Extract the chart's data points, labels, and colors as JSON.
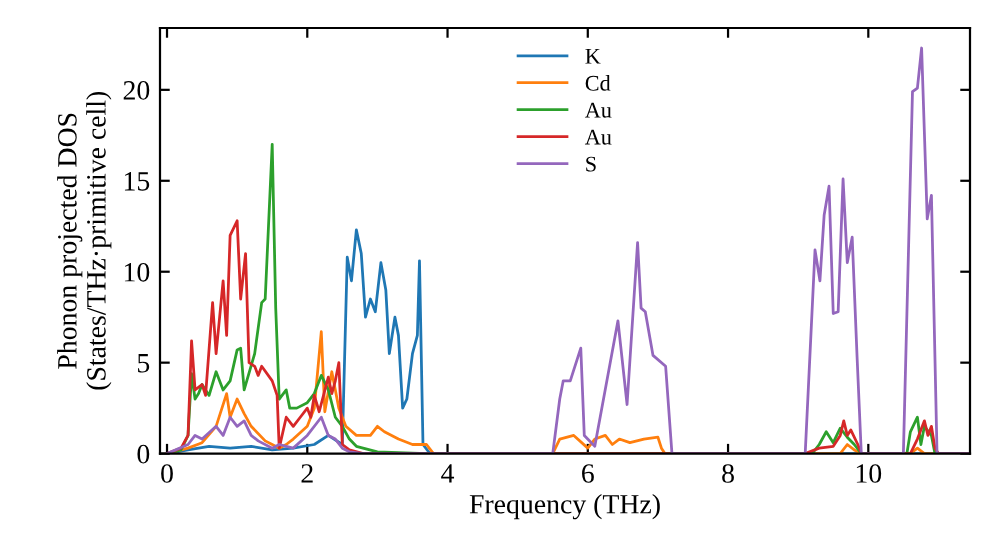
{
  "chart_data": {
    "type": "line",
    "xlabel": "Frequency (THz)",
    "ylabel": "Phonon projected DOS\n(States/THz·primitive cell)",
    "xlim": [
      -0.1,
      11.45
    ],
    "ylim": [
      0,
      23.4
    ],
    "xticks": [
      0,
      2,
      4,
      6,
      8,
      10
    ],
    "yticks": [
      0,
      5,
      10,
      15,
      20
    ],
    "grid": false,
    "legend": "top",
    "line_style": "solid",
    "marker": "none",
    "series": [
      {
        "name": "K",
        "color": "#1f77b4",
        "x": [
          0,
          0.3,
          0.6,
          0.9,
          1.2,
          1.5,
          1.8,
          2.1,
          2.3,
          2.5,
          2.57,
          2.63,
          2.7,
          2.77,
          2.83,
          2.9,
          2.97,
          3.05,
          3.12,
          3.17,
          3.25,
          3.3,
          3.36,
          3.42,
          3.5,
          3.57,
          3.6,
          3.65,
          3.75,
          11.45
        ],
        "values": [
          0,
          0.2,
          0.4,
          0.3,
          0.4,
          0.2,
          0.3,
          0.5,
          1.0,
          0.5,
          10.8,
          9.5,
          12.3,
          11,
          7.5,
          8.5,
          7.8,
          10.5,
          9,
          5.5,
          7.5,
          6.5,
          2.5,
          3.0,
          5.5,
          6.5,
          10.6,
          0.5,
          0,
          0
        ]
      },
      {
        "name": "Cd",
        "color": "#ff7f0e",
        "x": [
          0,
          0.3,
          0.5,
          0.7,
          0.85,
          0.9,
          1.0,
          1.1,
          1.2,
          1.4,
          1.5,
          1.6,
          1.7,
          1.8,
          2.0,
          2.1,
          2.2,
          2.25,
          2.35,
          2.45,
          2.55,
          2.7,
          2.9,
          3.0,
          3.1,
          3.3,
          3.5,
          3.7,
          3.8,
          5.5,
          5.6,
          5.8,
          6.0,
          6.1,
          6.25,
          6.35,
          6.45,
          6.6,
          6.8,
          7.0,
          7.05,
          7.1,
          9.6,
          9.7,
          9.8,
          9.9,
          10.6,
          10.7,
          10.8,
          11.45
        ],
        "values": [
          0,
          0.3,
          0.6,
          1.5,
          3.3,
          2.0,
          3.0,
          2.2,
          1.5,
          0.7,
          0.5,
          0.3,
          0.5,
          0.8,
          1.5,
          2.5,
          6.7,
          2.3,
          4.5,
          2.5,
          1.5,
          1.0,
          1.0,
          1.5,
          1.2,
          0.8,
          0.5,
          0.5,
          0,
          0,
          0.8,
          1.0,
          0.3,
          0.8,
          1.0,
          0.5,
          0.8,
          0.6,
          0.8,
          0.9,
          0.3,
          0,
          0,
          0.5,
          0.2,
          0,
          0,
          0.3,
          0,
          0
        ]
      },
      {
        "name": "Au",
        "color": "#2ca02c",
        "x": [
          0,
          0.2,
          0.3,
          0.35,
          0.4,
          0.45,
          0.5,
          0.6,
          0.7,
          0.8,
          0.9,
          1.0,
          1.05,
          1.1,
          1.25,
          1.35,
          1.4,
          1.5,
          1.55,
          1.6,
          1.7,
          1.75,
          1.85,
          2.0,
          2.1,
          2.2,
          2.3,
          2.4,
          2.5,
          2.6,
          2.7,
          3.0,
          3.7,
          9.2,
          9.3,
          9.4,
          9.5,
          9.6,
          9.7,
          9.8,
          9.9,
          10.55,
          10.6,
          10.7,
          10.75,
          10.8,
          10.9,
          10.95,
          11.45
        ],
        "values": [
          0,
          0.2,
          1,
          4.4,
          3,
          3.3,
          3.8,
          3.2,
          4.5,
          3.5,
          4.0,
          5.7,
          5.8,
          3.5,
          5.5,
          8.3,
          8.5,
          17.0,
          8,
          3.0,
          3.5,
          2.5,
          2.5,
          2.8,
          3.3,
          4.3,
          3.5,
          2.0,
          1.5,
          0.8,
          0.4,
          0.1,
          0,
          0,
          0.5,
          1.2,
          0.6,
          1.4,
          0.9,
          0.5,
          0,
          0,
          1.2,
          2.0,
          0.5,
          1.5,
          1.0,
          0,
          0
        ]
      },
      {
        "name": "Au",
        "color": "#d62728",
        "x": [
          0,
          0.2,
          0.3,
          0.35,
          0.4,
          0.5,
          0.55,
          0.65,
          0.7,
          0.8,
          0.85,
          0.9,
          1.0,
          1.05,
          1.12,
          1.17,
          1.25,
          1.3,
          1.35,
          1.5,
          1.57,
          1.6,
          1.7,
          1.8,
          1.9,
          2.0,
          2.05,
          2.1,
          2.17,
          2.3,
          2.35,
          2.4,
          2.45,
          2.5,
          2.6,
          2.8,
          9.1,
          9.3,
          9.5,
          9.6,
          9.65,
          9.7,
          9.75,
          9.85,
          9.9,
          10.6,
          10.7,
          10.8,
          10.85,
          10.9,
          10.95,
          11.0,
          11.45
        ],
        "values": [
          0,
          0.3,
          1,
          6.2,
          3.5,
          3.8,
          3.2,
          8.3,
          5.5,
          9.5,
          6.5,
          12,
          12.8,
          8.5,
          11,
          5,
          4.8,
          4.3,
          4.8,
          4.0,
          3.2,
          0.3,
          2.0,
          1.5,
          2.0,
          2.5,
          2.0,
          3.2,
          2.3,
          4.2,
          3.3,
          4.0,
          5.0,
          0.5,
          0.2,
          0,
          0,
          0.3,
          0.4,
          1.0,
          1.8,
          1.0,
          1.3,
          0.5,
          0,
          0,
          0.8,
          1.8,
          1.0,
          1.5,
          0.3,
          0,
          0
        ]
      },
      {
        "name": "S",
        "color": "#9467bd",
        "x": [
          0,
          0.3,
          0.4,
          0.5,
          0.7,
          0.8,
          0.9,
          1.0,
          1.1,
          1.2,
          1.3,
          1.5,
          1.6,
          1.8,
          2.0,
          2.2,
          2.3,
          2.4,
          2.5,
          2.6,
          2.8,
          5.5,
          5.6,
          5.65,
          5.75,
          5.9,
          5.95,
          6.1,
          6.43,
          6.56,
          6.71,
          6.76,
          6.82,
          6.93,
          7.11,
          7.2,
          9.1,
          9.24,
          9.31,
          9.37,
          9.44,
          9.5,
          9.57,
          9.64,
          9.7,
          9.77,
          9.84,
          9.9,
          10.5,
          10.63,
          10.7,
          10.76,
          10.84,
          10.9,
          10.98,
          11.45
        ],
        "values": [
          0,
          0.5,
          1.0,
          0.8,
          1.5,
          1.0,
          2.0,
          1.5,
          1.8,
          1.0,
          0.7,
          0.3,
          0.5,
          0.3,
          1.0,
          2.0,
          1.0,
          0.8,
          0.3,
          0.1,
          0,
          0,
          3.0,
          4.0,
          4.0,
          5.8,
          1.0,
          0.4,
          7.3,
          2.7,
          11.6,
          8.0,
          7.8,
          5.4,
          4.8,
          0,
          0,
          11.2,
          9.5,
          13.1,
          14.7,
          7.7,
          7.8,
          15.1,
          10.5,
          11.9,
          5.3,
          0,
          0,
          19.9,
          20.1,
          22.3,
          12.9,
          14.2,
          0,
          0
        ]
      }
    ]
  }
}
